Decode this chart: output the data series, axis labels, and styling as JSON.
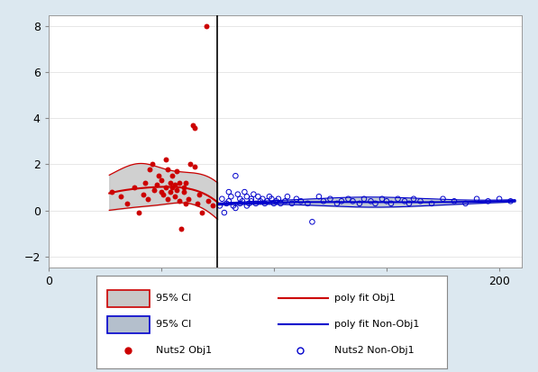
{
  "xlim": [
    0,
    210
  ],
  "ylim": [
    -2.5,
    8.5
  ],
  "xticks": [
    0,
    50,
    100,
    150,
    200
  ],
  "yticks": [
    -2,
    0,
    2,
    4,
    6,
    8
  ],
  "vline_x": 75,
  "bg_color": "#dce8f0",
  "plot_bg": "#ffffff",
  "red_scatter_x": [
    28,
    32,
    35,
    38,
    40,
    42,
    43,
    44,
    45,
    46,
    47,
    48,
    49,
    50,
    50,
    51,
    52,
    52,
    53,
    53,
    54,
    54,
    55,
    55,
    56,
    56,
    57,
    57,
    58,
    58,
    59,
    60,
    60,
    61,
    61,
    62,
    63,
    64,
    65,
    65,
    66,
    67,
    68,
    70,
    71,
    73
  ],
  "red_scatter_y": [
    0.8,
    0.6,
    0.3,
    1.0,
    -0.1,
    0.7,
    1.2,
    0.5,
    1.8,
    2.0,
    0.9,
    1.1,
    1.5,
    0.8,
    1.3,
    0.7,
    1.0,
    2.2,
    0.5,
    1.8,
    0.8,
    1.2,
    1.0,
    1.5,
    1.1,
    0.6,
    0.9,
    1.7,
    1.2,
    0.4,
    -0.8,
    0.8,
    1.0,
    1.2,
    0.3,
    0.5,
    2.0,
    3.7,
    1.9,
    3.6,
    0.3,
    0.7,
    -0.1,
    8.0,
    0.4,
    0.2
  ],
  "blue_scatter_x": [
    76,
    77,
    78,
    79,
    80,
    80,
    81,
    82,
    83,
    83,
    84,
    85,
    85,
    86,
    87,
    88,
    88,
    89,
    90,
    90,
    91,
    92,
    93,
    94,
    95,
    96,
    97,
    98,
    99,
    100,
    101,
    102,
    103,
    105,
    106,
    108,
    110,
    112,
    115,
    117,
    120,
    122,
    125,
    128,
    130,
    133,
    135,
    138,
    140,
    143,
    145,
    148,
    150,
    152,
    155,
    158,
    160,
    162,
    165,
    170,
    175,
    180,
    185,
    190,
    195,
    200,
    205
  ],
  "blue_scatter_y": [
    0.2,
    0.5,
    -0.1,
    0.3,
    0.8,
    0.4,
    0.6,
    0.2,
    1.5,
    0.1,
    0.7,
    0.3,
    0.5,
    0.4,
    0.8,
    0.6,
    0.2,
    0.3,
    0.5,
    0.4,
    0.7,
    0.3,
    0.6,
    0.4,
    0.5,
    0.3,
    0.4,
    0.6,
    0.5,
    0.3,
    0.4,
    0.5,
    0.3,
    0.4,
    0.6,
    0.3,
    0.5,
    0.4,
    0.3,
    -0.5,
    0.6,
    0.4,
    0.5,
    0.3,
    0.4,
    0.5,
    0.4,
    0.3,
    0.5,
    0.4,
    0.3,
    0.5,
    0.4,
    0.3,
    0.5,
    0.4,
    0.3,
    0.5,
    0.4,
    0.3,
    0.5,
    0.4,
    0.3,
    0.5,
    0.4,
    0.5,
    0.4
  ],
  "red_color": "#cc0000",
  "blue_color": "#0000cc",
  "ci_gray": "#c8c8c8",
  "ci_blue_gray": "#b4bfcc",
  "legend_fontsize": 8,
  "tick_fontsize": 9
}
